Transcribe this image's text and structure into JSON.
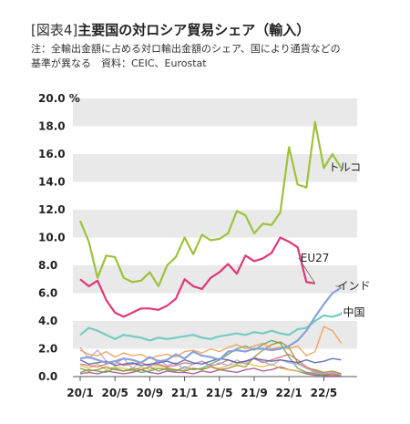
{
  "header": {
    "tag": "[図表4]",
    "title": "主要国の対ロシア貿易シェア（輸入）",
    "note_line1": "注：全輸出金額に占める対ロ輸出金額のシェア、国により通貨などの",
    "note_line2": "基準が異なる　資料：CEIC、Eurostat"
  },
  "chart_data": {
    "type": "line",
    "ylim": [
      0,
      20
    ],
    "y_ticks": [
      "20.0 %",
      "18.0",
      "16.0",
      "14.0",
      "12.0",
      "10.0",
      "8.0",
      "6.0",
      "4.0",
      "2.0",
      "0.0"
    ],
    "x_ticks": [
      "20/1",
      "20/5",
      "20/9",
      "21/1",
      "21/5",
      "21/9",
      "22/1",
      "22/5"
    ],
    "grid": "banded",
    "series": [
      {
        "name": "トルコ",
        "color": "#9dc23b",
        "values": [
          11.2,
          9.7,
          7.1,
          8.7,
          8.6,
          7.1,
          6.8,
          6.9,
          7.5,
          6.5,
          8.0,
          8.6,
          10.0,
          8.8,
          10.2,
          9.8,
          9.9,
          10.3,
          11.9,
          11.6,
          10.3,
          11.0,
          10.9,
          11.8,
          16.5,
          13.8,
          13.6,
          18.3,
          15.0,
          16.0,
          15.0
        ]
      },
      {
        "name": "EU27",
        "color": "#e0367a",
        "values": [
          7.0,
          6.5,
          6.9,
          5.5,
          4.6,
          4.3,
          4.6,
          4.9,
          4.9,
          4.8,
          5.1,
          5.6,
          7.0,
          6.5,
          6.3,
          7.1,
          7.5,
          8.1,
          7.4,
          8.7,
          8.3,
          8.5,
          8.9,
          10.0,
          9.7,
          9.3,
          6.8,
          6.7
        ]
      },
      {
        "name": "インド",
        "color": "#8aa0d8",
        "values": [
          1.3,
          1.4,
          1.2,
          1.0,
          1.1,
          1.3,
          1.2,
          1.0,
          1.4,
          1.1,
          1.2,
          1.6,
          1.3,
          1.8,
          1.5,
          1.4,
          1.2,
          1.8,
          1.9,
          1.8,
          2.0,
          2.0,
          1.9,
          2.0,
          2.2,
          2.6,
          3.3,
          4.3,
          5.2,
          6.0,
          6.4
        ]
      },
      {
        "name": "中国",
        "color": "#74ccc4",
        "values": [
          3.0,
          3.5,
          3.3,
          3.0,
          2.7,
          3.0,
          2.9,
          2.8,
          2.6,
          2.8,
          2.7,
          2.8,
          2.9,
          3.0,
          2.8,
          2.7,
          2.9,
          3.0,
          3.1,
          3.0,
          3.2,
          3.1,
          3.3,
          3.1,
          3.0,
          3.4,
          3.5,
          4.0,
          4.4,
          4.3,
          4.5
        ]
      },
      {
        "color": "#f09a4a",
        "values": [
          1.9,
          1.6,
          1.5,
          1.8,
          1.4,
          1.7,
          1.5,
          1.6,
          1.3,
          1.5,
          1.6,
          1.4,
          1.8,
          1.9,
          1.7,
          2.0,
          1.8,
          2.1,
          2.3,
          2.0,
          2.2,
          2.4,
          2.0,
          2.1,
          2.0,
          2.2,
          1.5,
          1.8,
          3.6,
          3.3,
          2.4
        ]
      },
      {
        "color": "#4b5aa8",
        "values": [
          1.2,
          0.9,
          1.0,
          1.1,
          0.8,
          0.9,
          1.0,
          0.8,
          0.9,
          1.0,
          1.1,
          0.9,
          1.2,
          1.0,
          0.9,
          1.1,
          1.3,
          1.2,
          1.0,
          1.1,
          1.3,
          1.2,
          1.1,
          1.2,
          1.1,
          1.0,
          1.2,
          1.0,
          1.1,
          1.3,
          1.2
        ]
      },
      {
        "color": "#b8a0d8",
        "values": [
          2.1,
          1.3,
          1.9,
          1.1,
          0.9,
          1.3,
          0.6,
          1.0,
          0.7,
          1.2,
          0.8,
          1.0,
          0.5,
          0.9,
          1.1,
          0.7,
          1.0,
          0.8,
          1.2,
          0.9,
          1.4,
          1.1,
          0.8,
          1.2,
          1.0,
          0.9,
          0.6,
          0.3,
          0.2,
          0.3,
          0.1
        ]
      },
      {
        "color": "#d46a6a",
        "values": [
          0.9,
          0.8,
          0.7,
          0.9,
          1.1,
          0.8,
          0.9,
          1.0,
          0.8,
          0.9,
          0.7,
          0.8,
          1.0,
          0.9,
          1.1,
          0.8,
          0.9,
          1.2,
          1.0,
          1.1,
          1.3,
          1.0,
          1.2,
          1.4,
          1.6,
          1.2,
          0.7,
          0.4,
          0.2,
          0.1,
          0.1
        ]
      },
      {
        "color": "#9a8a2a",
        "values": [
          0.6,
          0.4,
          0.5,
          0.7,
          0.5,
          0.4,
          0.6,
          0.5,
          0.7,
          0.4,
          0.6,
          0.5,
          0.4,
          0.6,
          0.5,
          0.7,
          0.5,
          0.6,
          0.8,
          0.7,
          1.4,
          1.9,
          2.3,
          2.5,
          2.1,
          1.0,
          0.6,
          0.5,
          0.3,
          0.4,
          0.2
        ]
      },
      {
        "color": "#5aa05a",
        "values": [
          0.3,
          0.5,
          0.4,
          0.3,
          0.6,
          0.4,
          0.5,
          0.3,
          0.4,
          0.6,
          0.5,
          0.4,
          0.7,
          0.5,
          0.6,
          0.9,
          1.2,
          1.6,
          2.0,
          2.2,
          1.9,
          2.3,
          2.6,
          2.4,
          1.4,
          0.6,
          0.3,
          0.2,
          0.1,
          0.2,
          0.1
        ]
      },
      {
        "color": "#d8c040",
        "values": [
          0.8,
          0.6,
          0.9,
          0.5,
          0.7,
          0.6,
          0.4,
          0.7,
          0.5,
          0.8,
          0.6,
          0.5,
          0.4,
          0.6,
          0.5,
          0.7,
          0.6,
          0.8,
          0.9,
          1.0,
          0.8,
          0.7,
          0.9,
          0.6,
          0.5,
          0.4,
          0.3,
          0.3,
          0.2,
          0.3,
          0.2
        ]
      },
      {
        "color": "#a04a8a",
        "values": [
          0.2,
          0.3,
          0.2,
          0.4,
          0.3,
          0.2,
          0.3,
          0.5,
          0.3,
          0.2,
          0.4,
          0.3,
          0.3,
          0.2,
          0.4,
          0.3,
          0.5,
          0.4,
          0.3,
          0.5,
          0.6,
          0.4,
          0.5,
          0.7,
          0.5,
          0.4,
          0.2,
          0.1,
          0.1,
          0.0,
          0.1
        ]
      }
    ]
  }
}
